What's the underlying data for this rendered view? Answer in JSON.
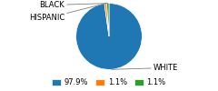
{
  "chart_data": {
    "type": "pie",
    "categories": [
      "WHITE",
      "HISPANIC",
      "BLACK"
    ],
    "values": [
      97.9,
      1.1,
      1.1
    ],
    "value_labels": [
      "97.9%",
      "1.1%",
      "1.1%"
    ],
    "legend": "lower center"
  }
}
